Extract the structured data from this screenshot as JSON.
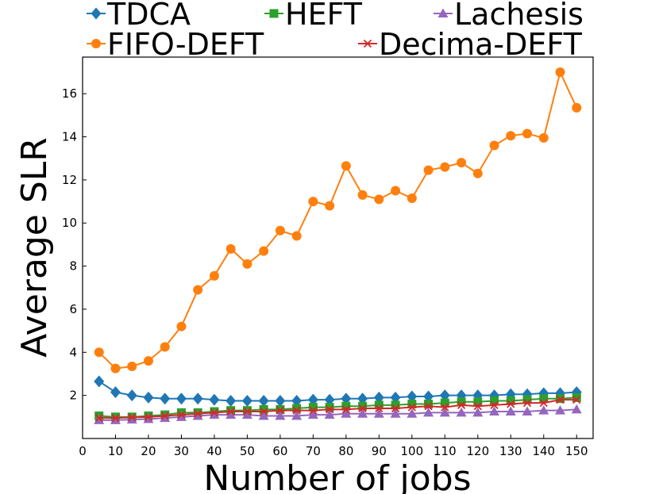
{
  "chart_data": {
    "type": "line",
    "xlabel": "Number of jobs",
    "ylabel": "Average SLR",
    "xlim": [
      0,
      155
    ],
    "ylim": [
      0,
      17.7
    ],
    "xticks": [
      0,
      10,
      20,
      30,
      40,
      50,
      60,
      70,
      80,
      90,
      100,
      110,
      120,
      130,
      140,
      150
    ],
    "yticks": [
      2,
      4,
      6,
      8,
      10,
      12,
      14,
      16
    ],
    "grid": false,
    "legend_position": "top (above plot), 3 columns",
    "x": [
      5,
      10,
      15,
      20,
      25,
      30,
      35,
      40,
      45,
      50,
      55,
      60,
      65,
      70,
      75,
      80,
      85,
      90,
      95,
      100,
      105,
      110,
      115,
      120,
      125,
      130,
      135,
      140,
      145,
      150
    ],
    "series": [
      {
        "name": "TDCA",
        "color": "#1f77b4",
        "marker": "diamond",
        "values": [
          2.65,
          2.15,
          2.0,
          1.9,
          1.85,
          1.85,
          1.85,
          1.8,
          1.75,
          1.75,
          1.75,
          1.75,
          1.75,
          1.8,
          1.8,
          1.85,
          1.85,
          1.9,
          1.9,
          1.95,
          1.95,
          2.0,
          2.0,
          2.0,
          2.0,
          2.05,
          2.05,
          2.1,
          2.1,
          2.15
        ]
      },
      {
        "name": "HEFT",
        "color": "#2ca02c",
        "marker": "square",
        "values": [
          1.05,
          1.0,
          1.0,
          1.05,
          1.1,
          1.2,
          1.2,
          1.25,
          1.3,
          1.3,
          1.35,
          1.35,
          1.4,
          1.45,
          1.45,
          1.5,
          1.5,
          1.55,
          1.55,
          1.6,
          1.6,
          1.65,
          1.7,
          1.7,
          1.75,
          1.75,
          1.8,
          1.85,
          1.85,
          1.9
        ]
      },
      {
        "name": "Lachesis",
        "color": "#9467bd",
        "marker": "triangle",
        "values": [
          0.85,
          0.85,
          0.88,
          0.9,
          0.95,
          1.0,
          1.05,
          1.1,
          1.1,
          1.1,
          1.05,
          1.05,
          1.05,
          1.1,
          1.1,
          1.15,
          1.15,
          1.15,
          1.15,
          1.15,
          1.2,
          1.2,
          1.2,
          1.2,
          1.25,
          1.25,
          1.25,
          1.3,
          1.3,
          1.35
        ]
      },
      {
        "name": "FIFO-DEFT",
        "color": "#ff7f0e",
        "marker": "circle",
        "values": [
          4.0,
          3.25,
          3.35,
          3.6,
          4.25,
          5.2,
          6.9,
          7.55,
          8.8,
          8.1,
          8.7,
          9.65,
          9.4,
          11.0,
          10.8,
          12.65,
          11.3,
          11.1,
          11.5,
          11.15,
          12.45,
          12.6,
          12.8,
          12.3,
          13.6,
          14.05,
          14.15,
          13.95,
          17.0,
          15.35
        ]
      },
      {
        "name": "Decima-DEFT",
        "color": "#d62728",
        "marker": "x",
        "values": [
          0.95,
          0.95,
          0.98,
          1.0,
          1.05,
          1.1,
          1.15,
          1.2,
          1.25,
          1.25,
          1.25,
          1.3,
          1.3,
          1.3,
          1.35,
          1.35,
          1.4,
          1.4,
          1.4,
          1.45,
          1.5,
          1.45,
          1.55,
          1.5,
          1.55,
          1.6,
          1.65,
          1.65,
          1.8,
          1.8
        ]
      }
    ]
  }
}
